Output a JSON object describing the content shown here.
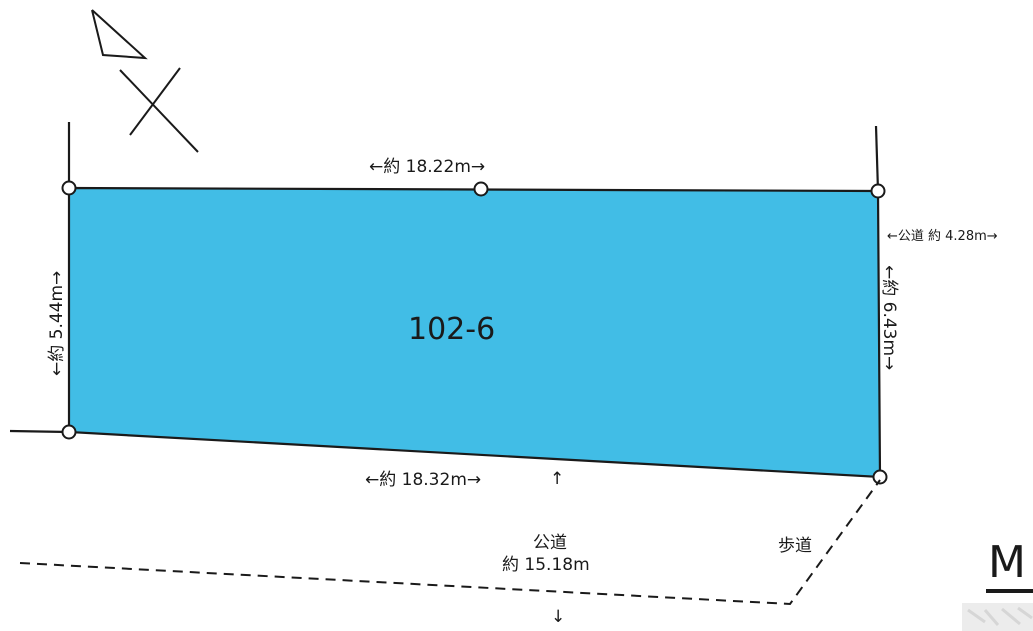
{
  "lot": {
    "number": "102-6",
    "fill_color": "#41bde6"
  },
  "dimensions": {
    "top": "←約 18.22m→",
    "bottom": "←約 18.32m→",
    "left": "←約 5.44m→",
    "right": "←約 6.43m→",
    "side_road": "←公道 約 4.28m→"
  },
  "front_road": {
    "label": "公道",
    "width": "約 15.18m",
    "arrow_up": "↑",
    "arrow_down": "↓"
  },
  "sidewalk": {
    "label": "歩道"
  },
  "corner": {
    "letter": "M"
  },
  "north_arrow": {
    "icon": "north-arrow-icon"
  }
}
